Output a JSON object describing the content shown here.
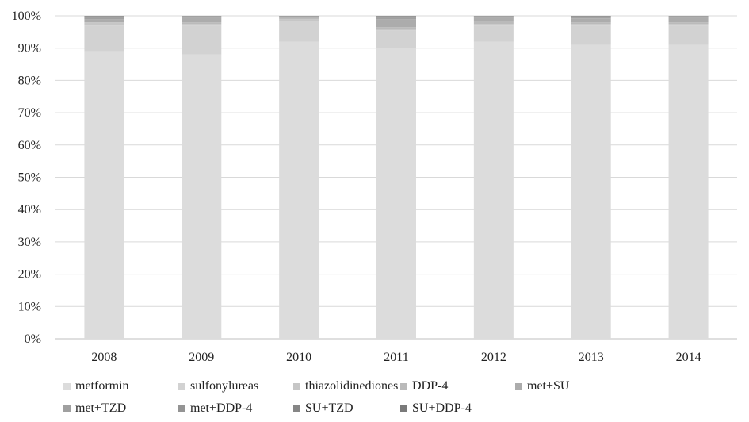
{
  "chart_data": {
    "type": "bar",
    "stacked": true,
    "categories": [
      "2008",
      "2009",
      "2010",
      "2011",
      "2012",
      "2013",
      "2014"
    ],
    "ylim": [
      0,
      100
    ],
    "yticks": [
      "0%",
      "10%",
      "20%",
      "30%",
      "40%",
      "50%",
      "60%",
      "70%",
      "80%",
      "90%",
      "100%"
    ],
    "grid": true,
    "legend_position": "bottom",
    "series": [
      {
        "name": "metformin",
        "color": "#dcdcdc",
        "values": [
          89,
          88,
          92,
          90,
          92,
          91,
          91
        ]
      },
      {
        "name": "sulfonylureas",
        "color": "#d2d2d2",
        "values": [
          8,
          9,
          6.5,
          5.5,
          5,
          6,
          6
        ]
      },
      {
        "name": "thiazolidinediones",
        "color": "#c6c6c6",
        "values": [
          1,
          0.5,
          0.5,
          0.5,
          0.5,
          0.5,
          0.5
        ]
      },
      {
        "name": "DDP-4",
        "color": "#bababa",
        "values": [
          0,
          0.5,
          0.3,
          0.5,
          1,
          0.5,
          0.5
        ]
      },
      {
        "name": "met+SU",
        "color": "#acacac",
        "values": [
          1,
          1.5,
          0.4,
          2.5,
          1,
          1.2,
          1.5
        ]
      },
      {
        "name": "met+TZD",
        "color": "#a0a0a0",
        "values": [
          0.5,
          0.3,
          0.2,
          0.5,
          0.3,
          0.3,
          0.3
        ]
      },
      {
        "name": "met+DDP-4",
        "color": "#949494",
        "values": [
          0.3,
          0.2,
          0.1,
          0.3,
          0.1,
          0.3,
          0.1
        ]
      },
      {
        "name": "SU+TZD",
        "color": "#868686",
        "values": [
          0.1,
          0,
          0,
          0.1,
          0.1,
          0.1,
          0.1
        ]
      },
      {
        "name": "SU+DDP-4",
        "color": "#7a7a7a",
        "values": [
          0.1,
          0,
          0,
          0.1,
          0,
          0.1,
          0
        ]
      }
    ]
  }
}
